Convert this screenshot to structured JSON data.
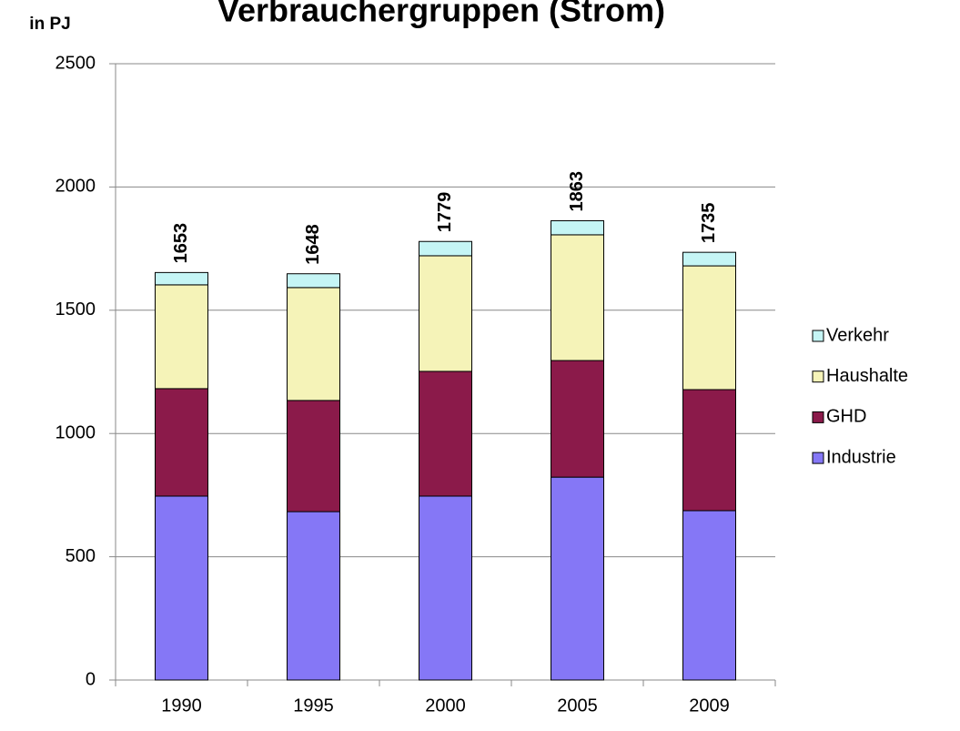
{
  "chart_data": {
    "type": "stacked_bar",
    "title": "Verbrauchergruppen (Strom)",
    "y_label": "in PJ",
    "categories": [
      "1990",
      "1995",
      "2000",
      "2005",
      "2009"
    ],
    "series": [
      {
        "name": "Industrie",
        "color": "#8577f6",
        "values": [
          746,
          683,
          746,
          823,
          687
        ]
      },
      {
        "name": "GHD",
        "color": "#8b1a4a",
        "values": [
          436,
          451,
          506,
          473,
          491
        ]
      },
      {
        "name": "Haushalte",
        "color": "#f5f3b8",
        "values": [
          421,
          458,
          469,
          510,
          502
        ]
      },
      {
        "name": "Verkehr",
        "color": "#c5f5f5",
        "values": [
          50,
          56,
          58,
          57,
          55
        ]
      }
    ],
    "totals": [
      1653,
      1648,
      1779,
      1863,
      1735
    ],
    "ylim": [
      0,
      2500
    ],
    "yticks": [
      0,
      500,
      1000,
      1500,
      2000,
      2500
    ],
    "grid": true,
    "legend": "right"
  }
}
